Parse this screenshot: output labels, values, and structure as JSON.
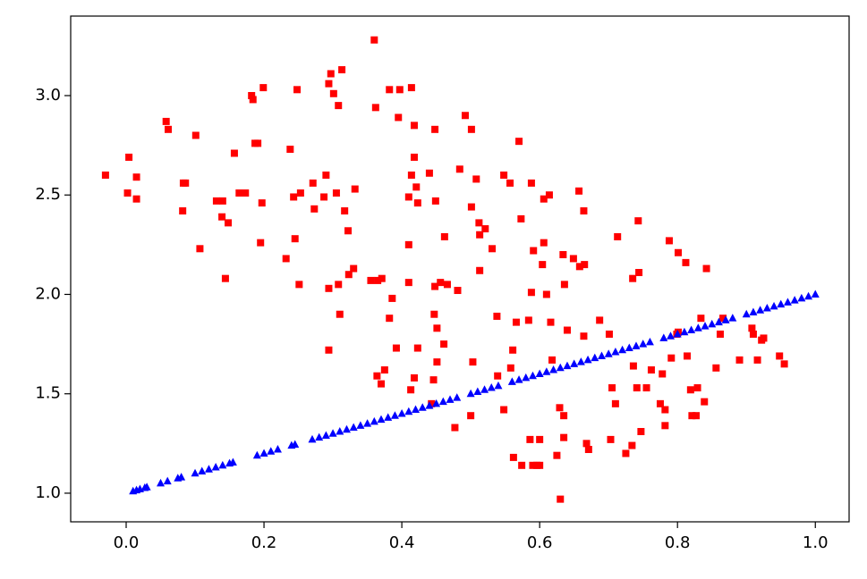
{
  "chart_data": {
    "type": "scatter",
    "xlim": [
      -0.0805,
      1.049
    ],
    "ylim": [
      0.856,
      3.4
    ],
    "xticks": [
      {
        "value": 0,
        "label": "0.0"
      },
      0.2,
      0.4,
      0.6,
      0.8,
      {
        "value": 1,
        "label": "1.0"
      }
    ],
    "yticks": [
      {
        "value": 1,
        "label": "1.0"
      },
      1.5,
      {
        "value": 2,
        "label": "2.0"
      },
      2.5,
      {
        "value": 3,
        "label": "3.0"
      }
    ],
    "grid": false,
    "series": [
      {
        "color": "#ff0000",
        "marker": "square",
        "x": [
          -0.03,
          0.004,
          0.002,
          0.015,
          0.015,
          0.058,
          0.061,
          0.083,
          0.086,
          0.082,
          0.101,
          0.107,
          0.131,
          0.14,
          0.139,
          0.148,
          0.144,
          0.157,
          0.164,
          0.173,
          0.182,
          0.184,
          0.187,
          0.191,
          0.199,
          0.197,
          0.195,
          0.238,
          0.232,
          0.248,
          0.243,
          0.245,
          0.253,
          0.251,
          0.271,
          0.273,
          0.287,
          0.29,
          0.294,
          0.297,
          0.301,
          0.313,
          0.308,
          0.305,
          0.294,
          0.294,
          0.308,
          0.31,
          0.317,
          0.322,
          0.323,
          0.33,
          0.332,
          0.36,
          0.362,
          0.355,
          0.365,
          0.371,
          0.364,
          0.37,
          0.375,
          0.382,
          0.397,
          0.395,
          0.386,
          0.382,
          0.392,
          0.41,
          0.41,
          0.41,
          0.413,
          0.414,
          0.418,
          0.418,
          0.414,
          0.421,
          0.423,
          0.418,
          0.423,
          0.44,
          0.448,
          0.449,
          0.448,
          0.456,
          0.466,
          0.462,
          0.447,
          0.451,
          0.461,
          0.451,
          0.446,
          0.443,
          0.481,
          0.477,
          0.484,
          0.492,
          0.501,
          0.508,
          0.501,
          0.512,
          0.521,
          0.513,
          0.513,
          0.503,
          0.5,
          0.531,
          0.538,
          0.539,
          0.548,
          0.557,
          0.548,
          0.558,
          0.561,
          0.566,
          0.562,
          0.574,
          0.57,
          0.573,
          0.588,
          0.591,
          0.588,
          0.584,
          0.586,
          0.59,
          0.596,
          0.6,
          0.6,
          0.604,
          0.606,
          0.606,
          0.614,
          0.61,
          0.616,
          0.618,
          0.629,
          0.625,
          0.63,
          0.635,
          0.635,
          0.634,
          0.64,
          0.636,
          0.649,
          0.657,
          0.658,
          0.664,
          0.665,
          0.664,
          0.668,
          0.671,
          0.687,
          0.701,
          0.705,
          0.71,
          0.713,
          0.703,
          0.725,
          0.735,
          0.744,
          0.743,
          0.734,
          0.736,
          0.741,
          0.747,
          0.755,
          0.762,
          0.778,
          0.775,
          0.782,
          0.782,
          0.788,
          0.791,
          0.799,
          0.801,
          0.801,
          0.812,
          0.814,
          0.819,
          0.821,
          0.827,
          0.829,
          0.834,
          0.839,
          0.842,
          0.856,
          0.862,
          0.866,
          0.89,
          0.908,
          0.91,
          0.916,
          0.922,
          0.925,
          0.948,
          0.955
        ],
        "values": [
          2.6,
          2.69,
          2.51,
          2.59,
          2.48,
          2.87,
          2.83,
          2.56,
          2.56,
          2.42,
          2.8,
          2.23,
          2.47,
          2.47,
          2.39,
          2.36,
          2.08,
          2.71,
          2.51,
          2.51,
          3.0,
          2.98,
          2.76,
          2.76,
          3.04,
          2.46,
          2.26,
          2.73,
          2.18,
          3.03,
          2.49,
          2.28,
          2.51,
          2.05,
          2.56,
          2.43,
          2.49,
          2.6,
          3.06,
          3.11,
          3.01,
          3.13,
          2.95,
          2.51,
          2.03,
          1.72,
          2.05,
          1.9,
          2.42,
          2.32,
          2.1,
          2.13,
          2.53,
          3.28,
          2.94,
          2.07,
          2.07,
          2.08,
          1.59,
          1.55,
          1.62,
          3.03,
          3.03,
          2.89,
          1.98,
          1.88,
          1.73,
          2.49,
          2.25,
          2.06,
          1.52,
          3.04,
          2.85,
          2.69,
          2.6,
          2.54,
          2.46,
          1.58,
          1.73,
          2.61,
          2.83,
          2.47,
          2.04,
          2.06,
          2.05,
          2.29,
          1.9,
          1.83,
          1.75,
          1.66,
          1.57,
          1.45,
          2.02,
          1.33,
          2.63,
          2.9,
          2.83,
          2.58,
          2.44,
          2.36,
          2.33,
          2.3,
          2.12,
          1.66,
          1.39,
          2.23,
          1.89,
          1.59,
          2.6,
          2.56,
          1.42,
          1.63,
          1.72,
          1.86,
          1.18,
          1.14,
          2.77,
          2.38,
          2.56,
          2.22,
          2.01,
          1.87,
          1.27,
          1.14,
          1.14,
          1.27,
          1.14,
          2.15,
          2.26,
          2.48,
          2.5,
          2.0,
          1.86,
          1.67,
          1.43,
          1.19,
          0.97,
          1.39,
          1.28,
          2.2,
          1.82,
          2.05,
          2.18,
          2.52,
          2.14,
          1.79,
          2.15,
          2.42,
          1.25,
          1.22,
          1.87,
          1.8,
          1.53,
          1.45,
          2.29,
          1.27,
          1.2,
          2.08,
          2.11,
          2.37,
          1.24,
          1.64,
          1.53,
          1.31,
          1.53,
          1.62,
          1.6,
          1.45,
          1.42,
          1.34,
          2.27,
          1.68,
          1.8,
          2.21,
          1.81,
          2.16,
          1.69,
          1.52,
          1.39,
          1.39,
          1.53,
          1.88,
          1.46,
          2.13,
          1.63,
          1.8,
          1.88,
          1.67,
          1.83,
          1.8,
          1.67,
          1.77,
          1.78,
          1.69,
          1.65
        ]
      },
      {
        "color": "#0000ff",
        "marker": "triangle",
        "x": [
          0.01,
          0.015,
          0.02,
          0.027,
          0.03,
          0.05,
          0.06,
          0.075,
          0.08,
          0.1,
          0.11,
          0.12,
          0.13,
          0.14,
          0.15,
          0.155,
          0.19,
          0.2,
          0.21,
          0.22,
          0.24,
          0.245,
          0.27,
          0.28,
          0.29,
          0.3,
          0.31,
          0.32,
          0.33,
          0.34,
          0.35,
          0.36,
          0.37,
          0.38,
          0.39,
          0.4,
          0.41,
          0.42,
          0.43,
          0.44,
          0.45,
          0.46,
          0.47,
          0.48,
          0.5,
          0.51,
          0.52,
          0.53,
          0.54,
          0.56,
          0.57,
          0.58,
          0.59,
          0.6,
          0.61,
          0.62,
          0.63,
          0.64,
          0.65,
          0.66,
          0.67,
          0.68,
          0.69,
          0.7,
          0.71,
          0.72,
          0.73,
          0.74,
          0.75,
          0.76,
          0.78,
          0.79,
          0.8,
          0.81,
          0.82,
          0.83,
          0.84,
          0.85,
          0.86,
          0.87,
          0.88,
          0.9,
          0.91,
          0.92,
          0.93,
          0.94,
          0.95,
          0.96,
          0.97,
          0.98,
          0.99,
          1.0
        ],
        "values": [
          1.01,
          1.015,
          1.02,
          1.027,
          1.03,
          1.05,
          1.06,
          1.075,
          1.08,
          1.1,
          1.11,
          1.12,
          1.13,
          1.14,
          1.15,
          1.155,
          1.19,
          1.2,
          1.21,
          1.22,
          1.24,
          1.245,
          1.27,
          1.28,
          1.29,
          1.3,
          1.31,
          1.32,
          1.33,
          1.34,
          1.35,
          1.36,
          1.37,
          1.38,
          1.39,
          1.4,
          1.41,
          1.42,
          1.43,
          1.44,
          1.45,
          1.46,
          1.47,
          1.48,
          1.5,
          1.51,
          1.52,
          1.53,
          1.54,
          1.56,
          1.57,
          1.58,
          1.59,
          1.6,
          1.61,
          1.62,
          1.63,
          1.64,
          1.65,
          1.66,
          1.67,
          1.68,
          1.69,
          1.7,
          1.71,
          1.72,
          1.73,
          1.74,
          1.75,
          1.76,
          1.78,
          1.79,
          1.8,
          1.81,
          1.82,
          1.83,
          1.84,
          1.85,
          1.86,
          1.87,
          1.88,
          1.9,
          1.91,
          1.92,
          1.93,
          1.94,
          1.95,
          1.96,
          1.97,
          1.98,
          1.99,
          2.0
        ]
      }
    ]
  }
}
